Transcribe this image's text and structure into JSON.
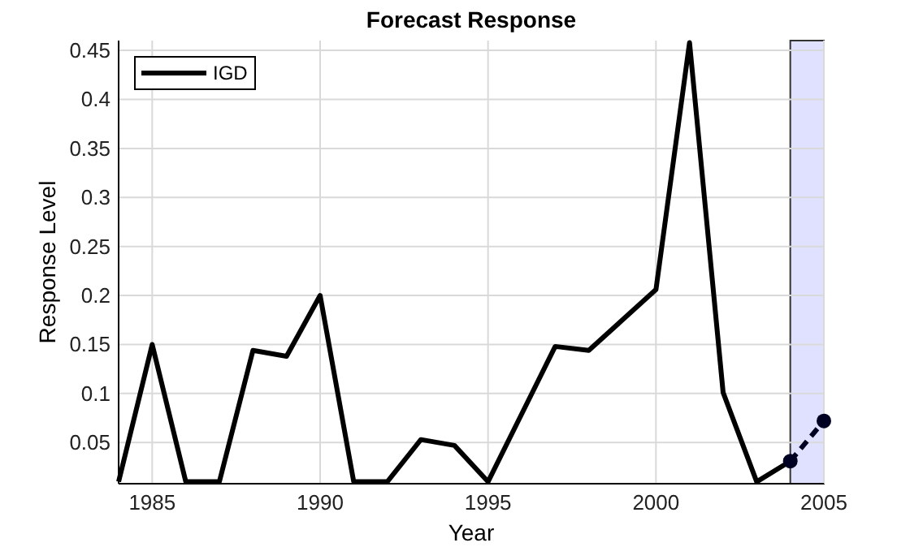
{
  "chart_data": {
    "type": "line",
    "title": "Forecast Response",
    "xlabel": "Year",
    "ylabel": "Response Level",
    "xlim": [
      1984,
      2005
    ],
    "xticks": [
      1985,
      1990,
      1995,
      2000,
      2005
    ],
    "ylim": [
      0.008,
      0.46
    ],
    "yticks": [
      0.05,
      0.1,
      0.15,
      0.2,
      0.25,
      0.3,
      0.35,
      0.4,
      0.45
    ],
    "grid": true,
    "legend": "top left",
    "bands": [
      {
        "axis": "x",
        "from": 2004,
        "to": 2005,
        "color": "#e0e0ff"
      }
    ],
    "series": [
      {
        "name": "IGD",
        "color": "#000000",
        "line_style": "solid",
        "marker": "none",
        "x": [
          1984,
          1985,
          1986,
          1987,
          1988,
          1989,
          1990,
          1991,
          1992,
          1993,
          1994,
          1995,
          1996,
          1997,
          1998,
          1999,
          2000,
          2001,
          2002,
          2003,
          2004
        ],
        "values": [
          0.01,
          0.15,
          0.01,
          0.01,
          0.144,
          0.138,
          0.2,
          0.01,
          0.01,
          0.053,
          0.047,
          0.01,
          0.079,
          0.148,
          0.144,
          0.175,
          0.206,
          0.458,
          0.101,
          0.01,
          0.031
        ]
      },
      {
        "color": "#000022",
        "line_style": "dashed",
        "marker": "circle",
        "x": [
          2004,
          2005
        ],
        "values": [
          0.031,
          0.072
        ]
      }
    ]
  }
}
